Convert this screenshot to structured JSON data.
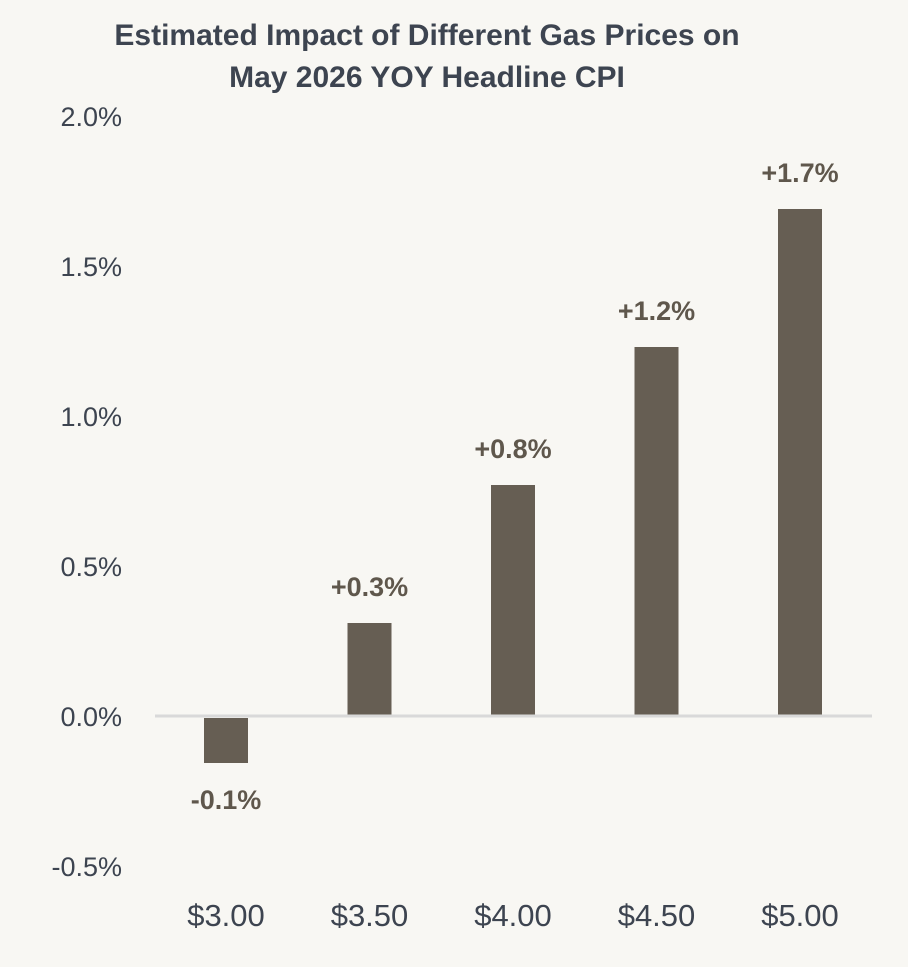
{
  "chart_data": {
    "type": "bar",
    "title": "Estimated Impact of Different Gas Prices on",
    "subtitle": "May 2026 YOY Headline CPI",
    "xlabel": "",
    "ylabel": "",
    "categories": [
      "$3.00",
      "$3.50",
      "$4.00",
      "$4.50",
      "$5.00"
    ],
    "values": [
      -0.15,
      0.31,
      0.77,
      1.23,
      1.69
    ],
    "data_labels": [
      "-0.1%",
      "+0.3%",
      "+0.8%",
      "+1.2%",
      "+1.7%"
    ],
    "ylim": [
      -0.5,
      2.0
    ],
    "yticks": [
      -0.5,
      0.0,
      0.5,
      1.0,
      1.5,
      2.0
    ],
    "ytick_labels": [
      "-0.5%",
      "0.0%",
      "0.5%",
      "1.0%",
      "1.5%",
      "2.0%"
    ],
    "grid": false,
    "legend": "none",
    "colors": {
      "bar": "#665E53",
      "zero_line": "#D9D9D9",
      "background": "#F8F7F3"
    }
  }
}
